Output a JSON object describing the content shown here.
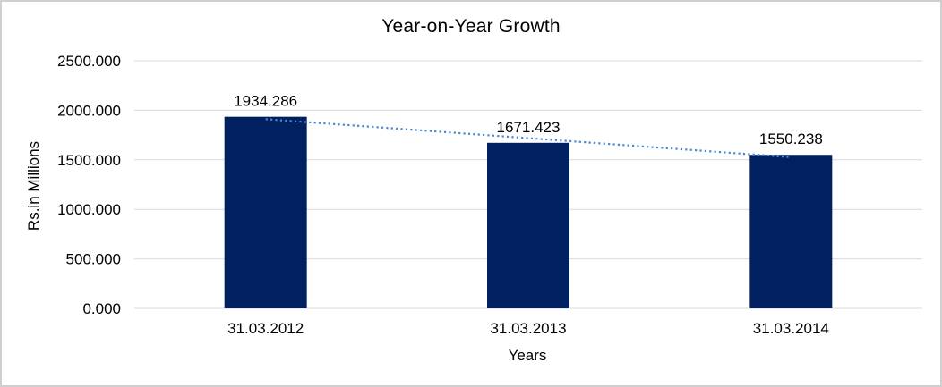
{
  "window": {
    "background": "#ffffff",
    "frame_border_color": "#d0cece"
  },
  "chart_data": {
    "type": "bar",
    "title": "Year-on-Year Growth",
    "xlabel": "Years",
    "ylabel": "Rs.in Millions",
    "categories": [
      "31.03.2012",
      "31.03.2013",
      "31.03.2014"
    ],
    "values": [
      1934.286,
      1671.423,
      1550.238
    ],
    "data_labels": [
      "1934.286",
      "1671.423",
      "1550.238"
    ],
    "y_axis": {
      "min": 0,
      "max": 2500,
      "step": 500,
      "tick_labels": [
        "0.000",
        "500.000",
        "1000.000",
        "1500.000",
        "2000.000",
        "2500.000"
      ]
    },
    "grid": true,
    "legend": "none",
    "trendline": {
      "type": "linear",
      "style": "dotted"
    },
    "colors": {
      "bar": "#002060",
      "trendline": "#4a86d6",
      "gridline": "#d9d9d9",
      "text": "#000000"
    }
  }
}
